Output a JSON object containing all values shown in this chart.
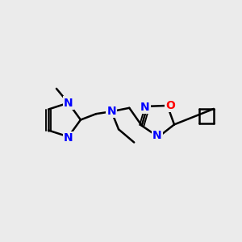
{
  "background_color": "#ebebeb",
  "atom_color_N": "#0000ff",
  "atom_color_O": "#ff0000",
  "bond_color": "#000000",
  "bond_width": 1.8,
  "font_size_atoms": 10,
  "fig_size": [
    3.0,
    3.0
  ],
  "dpi": 100,
  "xlim": [
    0,
    10
  ],
  "ylim": [
    0,
    10
  ]
}
